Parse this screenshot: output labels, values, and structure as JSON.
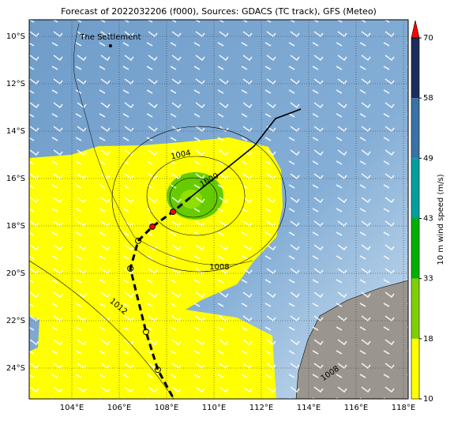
{
  "title": "Forecast of 2022032206 (f000), Sources: GDACS (TC track), GFS (Meteo)",
  "map": {
    "xlim": [
      102.2,
      118.2
    ],
    "ylim": [
      -25.3,
      -9.3
    ],
    "xticks": [
      {
        "value": 104,
        "label": "104°E"
      },
      {
        "value": 106,
        "label": "106°E"
      },
      {
        "value": 108,
        "label": "108°E"
      },
      {
        "value": 110,
        "label": "110°E"
      },
      {
        "value": 112,
        "label": "112°E"
      },
      {
        "value": 114,
        "label": "114°E"
      },
      {
        "value": 116,
        "label": "116°E"
      },
      {
        "value": 118,
        "label": "118°E"
      }
    ],
    "yticks": [
      {
        "value": -10,
        "label": "10°S"
      },
      {
        "value": -12,
        "label": "12°S"
      },
      {
        "value": -14,
        "label": "14°S"
      },
      {
        "value": -16,
        "label": "16°S"
      },
      {
        "value": -18,
        "label": "18°S"
      },
      {
        "value": -20,
        "label": "20°S"
      },
      {
        "value": -22,
        "label": "22°S"
      },
      {
        "value": -24,
        "label": "24°S"
      }
    ],
    "places": [
      {
        "label": "The Settlement",
        "lon": 105.63,
        "lat": -10.4
      }
    ],
    "contour_labels": [
      {
        "label": "1004",
        "lon": 108.6,
        "lat": -15.0
      },
      {
        "label": "1000",
        "lon": 109.8,
        "lat": -16.07
      },
      {
        "label": "1008",
        "lon": 110.23,
        "lat": -19.73
      },
      {
        "label": "1012",
        "lon": 105.97,
        "lat": -21.4
      },
      {
        "label": "1008",
        "lon": 114.9,
        "lat": -24.23
      }
    ],
    "track": {
      "lon": [
        113.67,
        112.6,
        111.7,
        109.0
      ],
      "lat": [
        -13.07,
        -13.47,
        -14.63,
        -16.8
      ]
    },
    "forecast_track": {
      "lon": [
        109.0,
        108.27,
        107.4,
        106.8,
        106.47,
        107.13,
        107.63,
        108.3
      ],
      "lat": [
        -16.8,
        -17.4,
        -18.03,
        -18.63,
        -19.8,
        -22.47,
        -24.07,
        -25.3
      ]
    }
  },
  "colorbar": {
    "label": "10 m wind speed (m/s)",
    "levels": [
      10,
      18,
      33,
      43,
      49,
      58,
      70
    ],
    "colors": [
      "#ffff00",
      "#80d000",
      "#00b000",
      "#00a0a0",
      "#3a72a8",
      "#1c2c5c"
    ],
    "extend_color": "#ff0000"
  }
}
